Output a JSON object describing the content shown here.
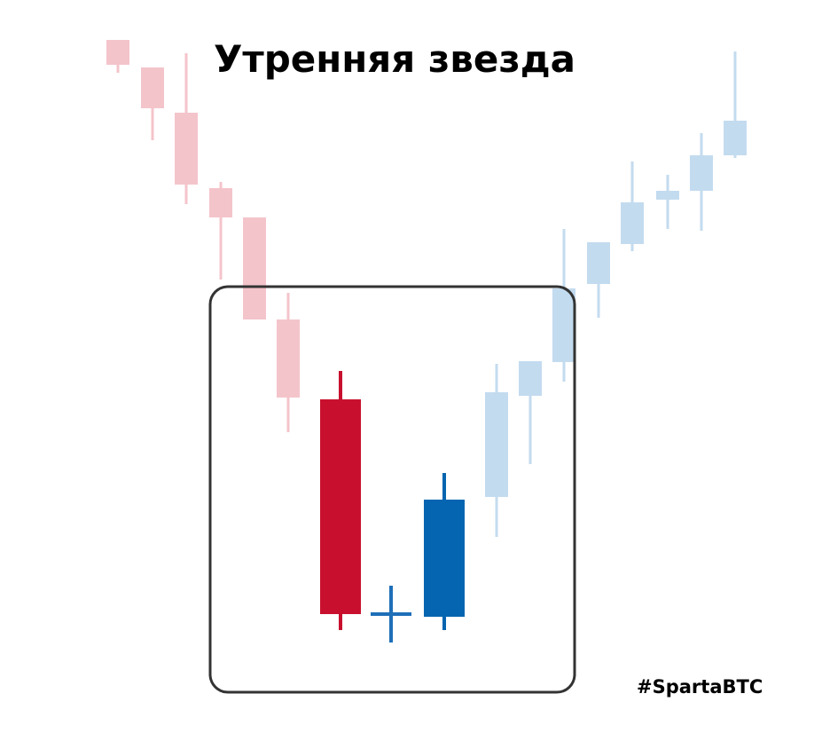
{
  "title": "Утренняя звезда",
  "hashtag": "#SpartaBTC",
  "colors": {
    "faded_bear": "#f4c4cb",
    "bear": "#c8102e",
    "star": "#1f6fb8",
    "bull": "#0565b0",
    "faded_bull": "#c3dbef",
    "frame": "#333333"
  },
  "chart_data": {
    "type": "candlestick",
    "note_units": "relative price",
    "candles": [
      {
        "open": 75.5,
        "close": 72.7,
        "high": 75.5,
        "low": 71.8,
        "style": "faded_bear"
      },
      {
        "open": 72.4,
        "close": 67.8,
        "high": 72.4,
        "low": 64.2,
        "style": "faded_bear"
      },
      {
        "open": 67.3,
        "close": 59.2,
        "high": 74.0,
        "low": 57.0,
        "style": "faded_bear"
      },
      {
        "open": 58.8,
        "close": 55.5,
        "high": 59.5,
        "low": 48.5,
        "style": "faded_bear"
      },
      {
        "open": 55.5,
        "close": 44.0,
        "high": 55.5,
        "low": 44.0,
        "style": "faded_bear"
      },
      {
        "open": 44.0,
        "close": 35.2,
        "high": 47.0,
        "low": 31.3,
        "style": "faded_bear"
      },
      {
        "open": 35.0,
        "close": 10.8,
        "high": 38.2,
        "low": 9.0,
        "style": "bear"
      },
      {
        "open": 10.8,
        "close": 10.8,
        "high": 14.0,
        "low": 7.6,
        "style": "star"
      },
      {
        "open": 10.5,
        "close": 23.7,
        "high": 26.7,
        "low": 9.0,
        "style": "bull"
      },
      {
        "open": 24.0,
        "close": 35.8,
        "high": 39.0,
        "low": 19.5,
        "style": "faded_bull"
      },
      {
        "open": 35.4,
        "close": 39.3,
        "high": 39.3,
        "low": 27.7,
        "style": "faded_bull"
      },
      {
        "open": 39.2,
        "close": 47.5,
        "high": 54.2,
        "low": 37.0,
        "style": "faded_bull"
      },
      {
        "open": 48.0,
        "close": 52.7,
        "high": 52.7,
        "low": 44.2,
        "style": "faded_bull"
      },
      {
        "open": 52.5,
        "close": 57.2,
        "high": 61.8,
        "low": 51.7,
        "style": "faded_bull"
      },
      {
        "open": 57.5,
        "close": 58.5,
        "high": 60.3,
        "low": 54.2,
        "style": "faded_bull"
      },
      {
        "open": 58.5,
        "close": 62.5,
        "high": 65.0,
        "low": 54.0,
        "style": "faded_bull"
      },
      {
        "open": 62.5,
        "close": 66.4,
        "high": 74.2,
        "low": 62.2,
        "style": "faded_bull"
      }
    ],
    "highlight": "candles 7-9"
  }
}
